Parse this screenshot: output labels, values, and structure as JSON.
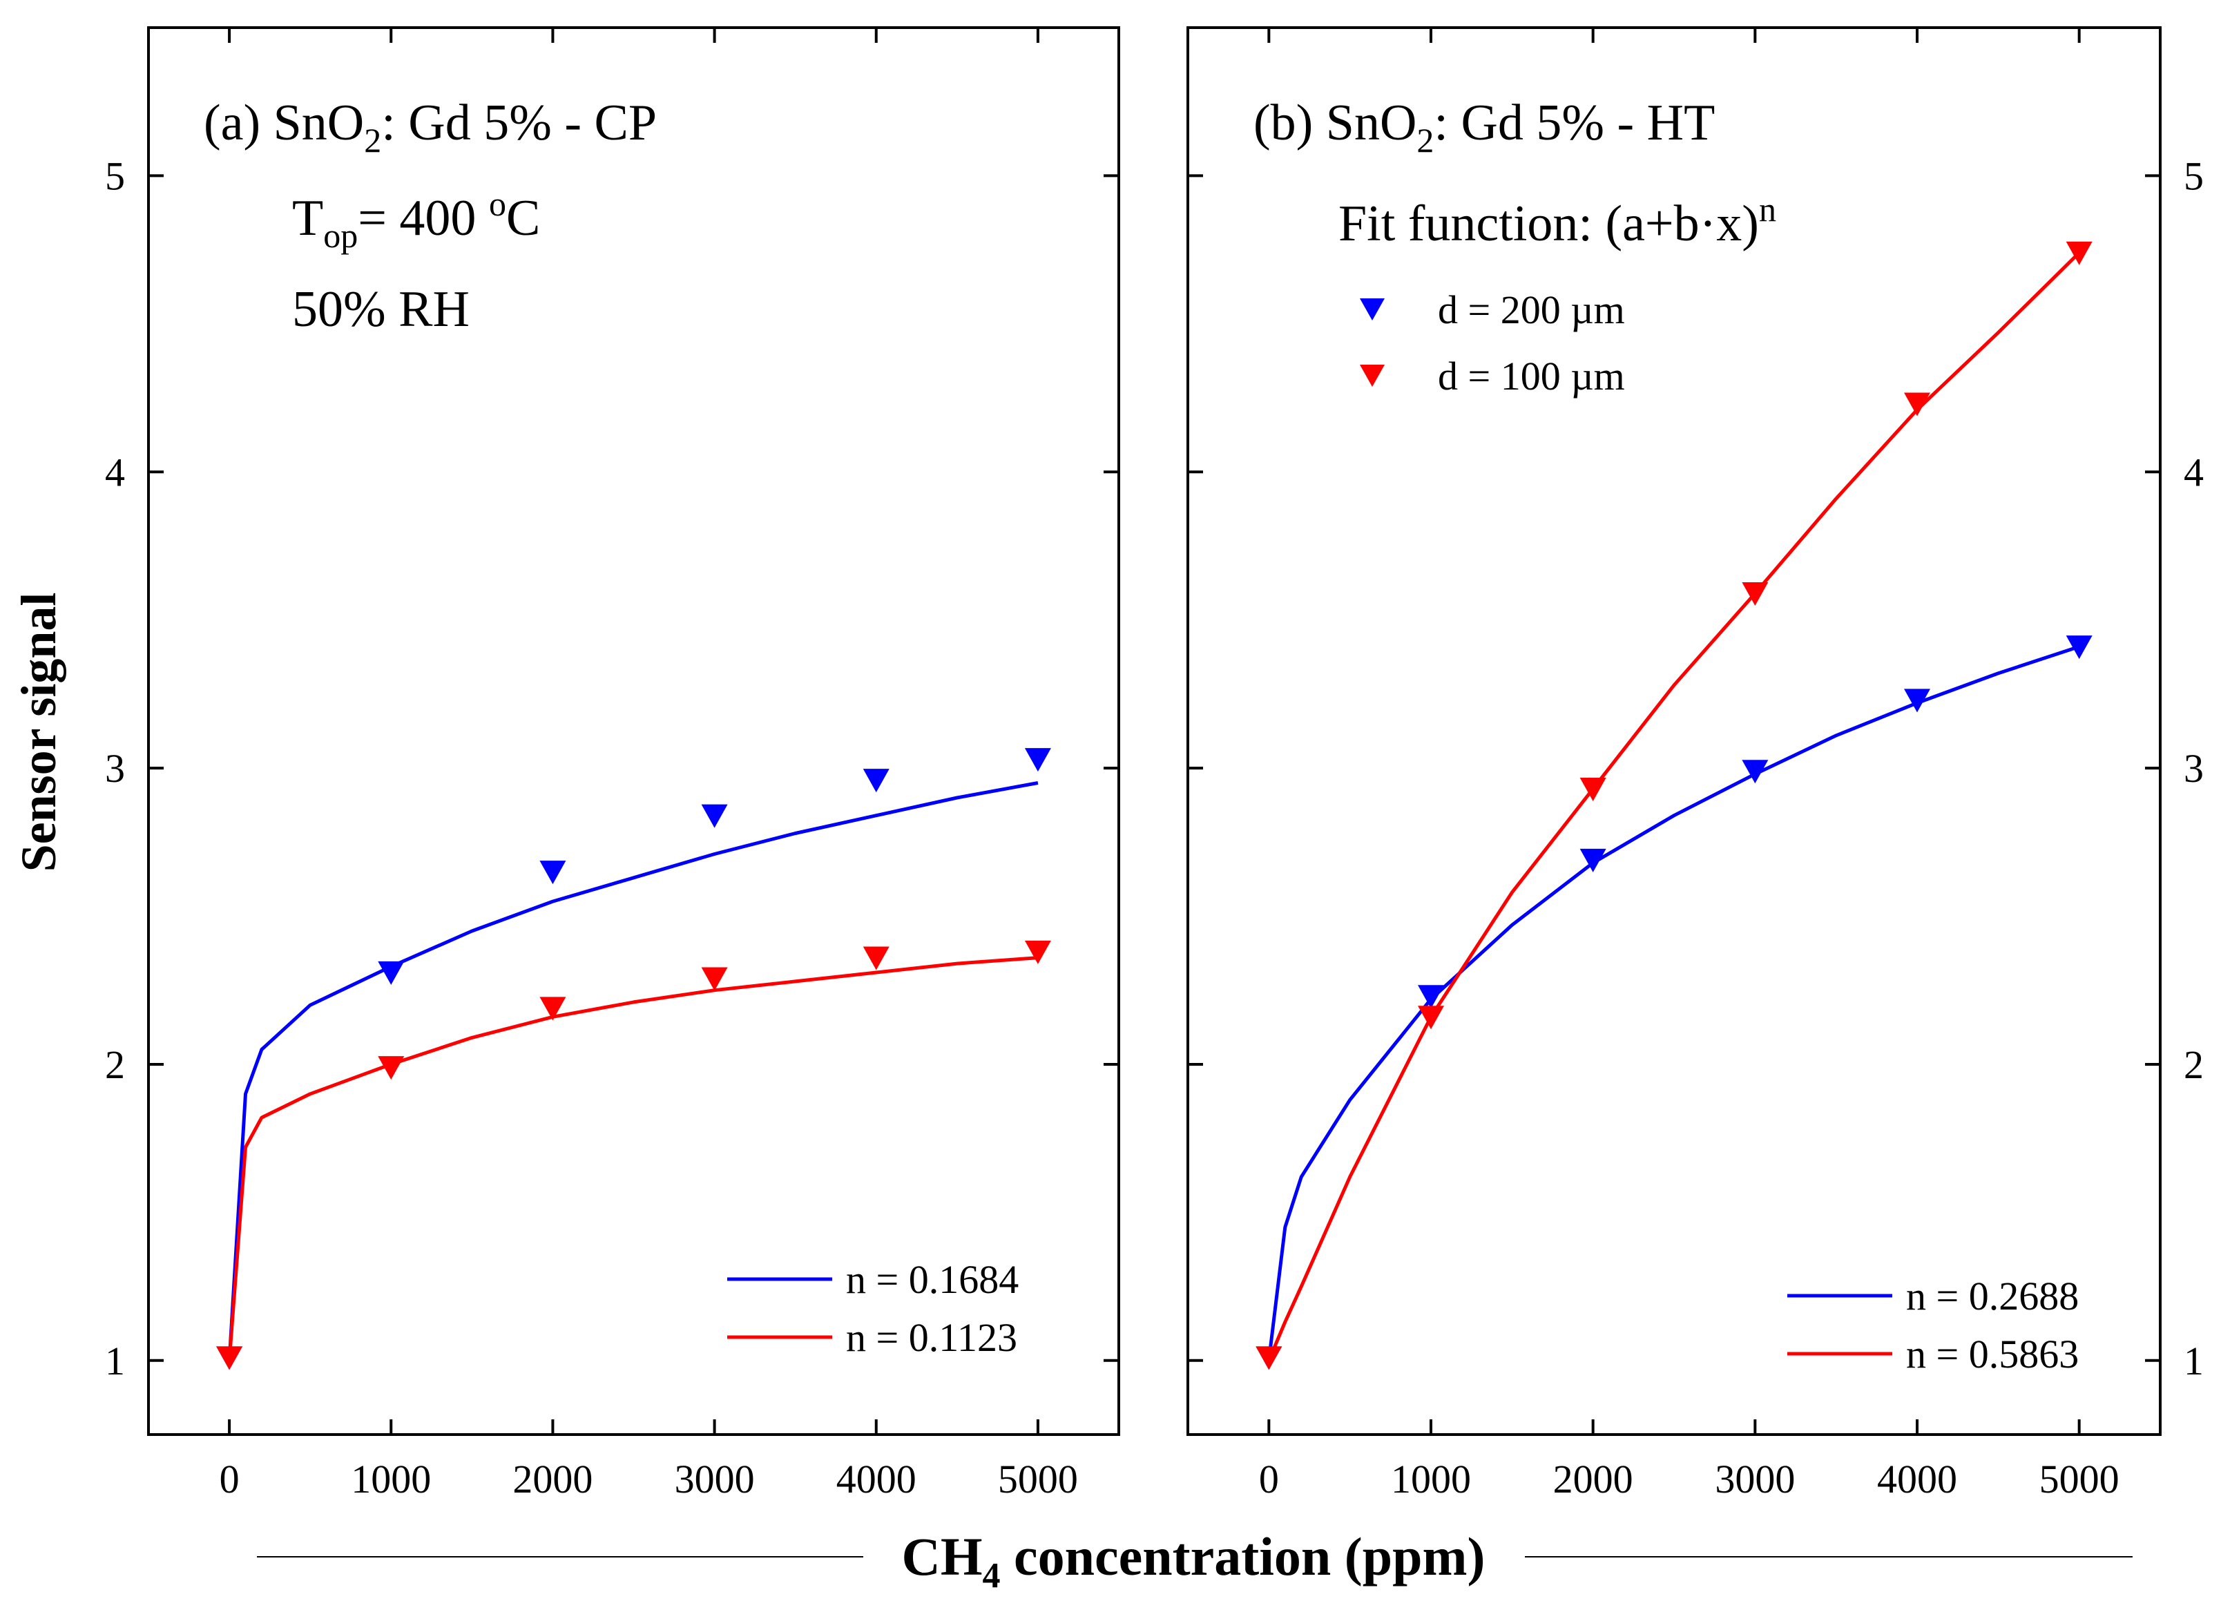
{
  "chart_data": [
    {
      "type": "line",
      "panel_title": {
        "pre": "(a) SnO",
        "sub": "2",
        "post": ": Gd 5% - CP"
      },
      "annotations": [
        {
          "pre": "T",
          "sub": "op",
          "mid": "= 400 ",
          "sup": "o",
          "post": "C"
        },
        {
          "pre": "50% RH"
        }
      ],
      "xlim": [
        -500,
        5500
      ],
      "ylim": [
        0.75,
        5.5
      ],
      "x_ticks": [
        0,
        1000,
        2000,
        3000,
        4000,
        5000
      ],
      "y_ticks": [
        1,
        2,
        3,
        4,
        5
      ],
      "x_tick_labels": [
        "0",
        "1000",
        "2000",
        "3000",
        "4000",
        "5000"
      ],
      "y_tick_labels": [
        "1",
        "2",
        "3",
        "4",
        "5"
      ],
      "y_tick_labels_side": "left",
      "series": [
        {
          "color": "#0000ff",
          "marker": "triangle-down",
          "x": [
            0,
            1000,
            2000,
            3000,
            4000,
            5000
          ],
          "y": [
            1.0,
            2.3,
            2.64,
            2.83,
            2.95,
            3.02
          ],
          "fit_n": 0.1684,
          "fit_y": [
            1.0,
            1.9,
            2.05,
            2.2,
            2.33,
            2.45,
            2.55,
            2.63,
            2.71,
            2.78,
            2.84,
            2.9,
            2.95,
            3.0,
            3.05
          ]
        },
        {
          "color": "#ff0000",
          "marker": "triangle-down",
          "x": [
            0,
            1000,
            2000,
            3000,
            4000,
            5000
          ],
          "y": [
            1.0,
            1.98,
            2.18,
            2.28,
            2.35,
            2.37
          ],
          "fit_n": 0.1123,
          "fit_y": [
            1.0,
            1.72,
            1.82,
            1.9,
            2.0,
            2.09,
            2.16,
            2.21,
            2.25,
            2.28,
            2.31,
            2.34,
            2.36,
            2.38,
            2.4
          ]
        }
      ],
      "fit_x": [
        0,
        100,
        200,
        500,
        1000,
        1500,
        2000,
        2500,
        3000,
        3500,
        4000,
        4500,
        5000,
        5500,
        5000
      ],
      "legend": {
        "position": "bottom-right",
        "entries": [
          "n = 0.1684",
          "n = 0.1123"
        ]
      }
    },
    {
      "type": "line",
      "panel_title": {
        "pre": "(b) SnO",
        "sub": "2",
        "post": ": Gd 5% - HT"
      },
      "annotations": [
        {
          "pre": "Fit function: (a+b·x)",
          "sup": "n"
        }
      ],
      "xlim": [
        -500,
        5500
      ],
      "ylim": [
        0.75,
        5.5
      ],
      "x_ticks": [
        0,
        1000,
        2000,
        3000,
        4000,
        5000
      ],
      "y_ticks": [
        1,
        2,
        3,
        4,
        5
      ],
      "x_tick_labels": [
        "0",
        "1000",
        "2000",
        "3000",
        "4000",
        "5000"
      ],
      "y_tick_labels": [
        "1",
        "2",
        "3",
        "4",
        "5"
      ],
      "y_tick_labels_side": "right",
      "series": [
        {
          "name": "d = 200 µm",
          "color": "#0000ff",
          "marker": "triangle-down",
          "x": [
            0,
            1000,
            2000,
            3000,
            4000,
            5000
          ],
          "y": [
            1.0,
            2.22,
            2.68,
            2.98,
            3.22,
            3.4
          ],
          "fit_n": 0.2688,
          "fit_y": [
            1.0,
            1.45,
            1.62,
            1.88,
            2.22,
            2.47,
            2.68,
            2.84,
            2.98,
            3.11,
            3.22,
            3.32,
            3.41
          ]
        },
        {
          "name": "d = 100 µm",
          "color": "#ff0000",
          "marker": "triangle-down",
          "x": [
            0,
            1000,
            2000,
            3000,
            4000,
            5000
          ],
          "y": [
            1.0,
            2.15,
            2.92,
            3.58,
            4.22,
            4.73
          ],
          "fit_n": 0.5863,
          "fit_y": [
            1.0,
            1.13,
            1.25,
            1.62,
            2.16,
            2.58,
            2.93,
            3.28,
            3.59,
            3.91,
            4.21,
            4.47,
            4.74
          ]
        }
      ],
      "fit_x": [
        0,
        100,
        200,
        500,
        1000,
        1500,
        2000,
        2500,
        3000,
        3500,
        4000,
        4500,
        5000
      ],
      "marker_legend": {
        "position": "top-left",
        "entries": [
          "d = 200 µm",
          "d = 100 µm"
        ]
      },
      "legend": {
        "position": "bottom-right",
        "entries": [
          "n = 0.2688",
          "n = 0.5863"
        ]
      }
    }
  ],
  "ylabel": "Sensor signal",
  "xlabel": {
    "pre": "CH",
    "sub": "4",
    "post": " concentration (ppm)"
  }
}
